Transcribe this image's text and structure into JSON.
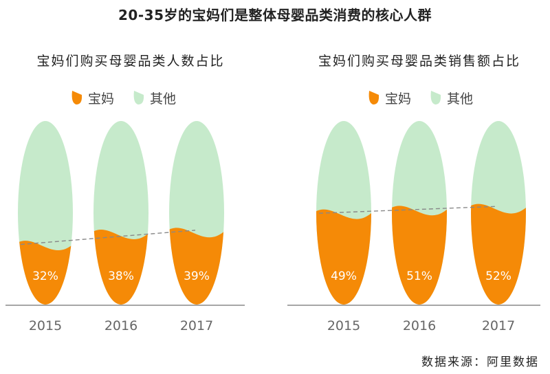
{
  "title": "20-35岁的宝妈们是整体母婴品类消费的核心人群",
  "source": "数据来源：阿里数据",
  "colors": {
    "mom": "#F58A07",
    "other": "#C6EACB",
    "axis": "#888888",
    "trend": "#888888"
  },
  "chart_data": [
    {
      "type": "area",
      "title": "宝妈们购买母婴品类人数占比",
      "legend": [
        {
          "label": "宝妈",
          "icon": "teardrop-icon"
        },
        {
          "label": "其他",
          "icon": "drop-icon"
        }
      ],
      "categories": [
        "2015",
        "2016",
        "2017"
      ],
      "series": [
        {
          "name": "宝妈",
          "values": [
            32,
            38,
            39
          ],
          "labels": [
            "32%",
            "38%",
            "39%"
          ]
        }
      ]
    },
    {
      "type": "area",
      "title": "宝妈们购买母婴品类销售额占比",
      "legend": [
        {
          "label": "宝妈",
          "icon": "teardrop-icon"
        },
        {
          "label": "其他",
          "icon": "drop-icon"
        }
      ],
      "categories": [
        "2015",
        "2016",
        "2017"
      ],
      "series": [
        {
          "name": "宝妈",
          "values": [
            49,
            51,
            52
          ],
          "labels": [
            "49%",
            "51%",
            "52%"
          ]
        }
      ]
    }
  ]
}
